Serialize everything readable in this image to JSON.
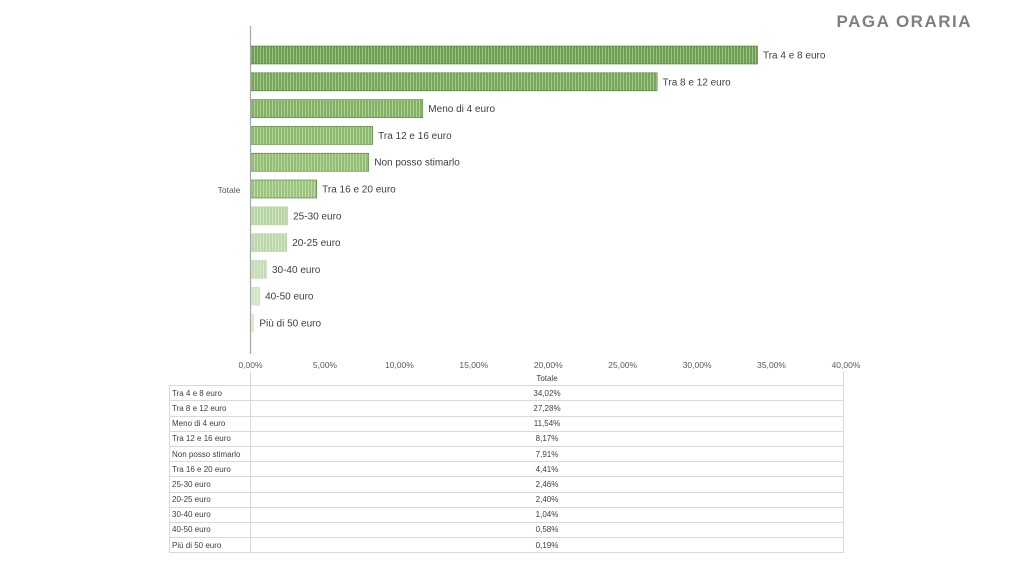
{
  "page": {
    "title": "PAGA ORARIA"
  },
  "chart_data": {
    "type": "bar",
    "orientation": "horizontal",
    "title": "PAGA ORARIA",
    "category_axis_label": "Totale",
    "categories": [
      "Tra 4 e 8 euro",
      "Tra 8 e 12 euro",
      "Meno di 4 euro",
      "Tra 12 e 16 euro",
      "Non posso stimarlo",
      "Tra 16 e 20 euro",
      "25-30 euro",
      "20-25 euro",
      "30-40 euro",
      "40-50 euro",
      "Più di 50 euro"
    ],
    "series": [
      {
        "name": "Totale",
        "values": [
          34.02,
          27.28,
          11.54,
          8.17,
          7.91,
          4.41,
          2.46,
          2.4,
          1.04,
          0.58,
          0.19
        ]
      }
    ],
    "value_labels": [
      "34,02%",
      "27,28%",
      "11,54%",
      "8,17%",
      "7,91%",
      "4,41%",
      "2,46%",
      "2,40%",
      "1,04%",
      "0,58%",
      "0,19%"
    ],
    "x_ticks": [
      "0,00%",
      "5,00%",
      "10,00%",
      "15,00%",
      "20,00%",
      "25,00%",
      "30,00%",
      "35,00%",
      "40,00%"
    ],
    "xlim": [
      0,
      40
    ],
    "grid": false,
    "legend": "none",
    "data_table": {
      "header": "Totale"
    },
    "colors": [
      "#6c9f4f",
      "#76a957",
      "#82b362",
      "#8bba6a",
      "#93bf72",
      "#9bc47c",
      "#b7d5a4",
      "#bcd8aa",
      "#c5ddb6",
      "#d0e4c3",
      "#dbeacf"
    ],
    "bar_stroke": "#4e7a36"
  }
}
